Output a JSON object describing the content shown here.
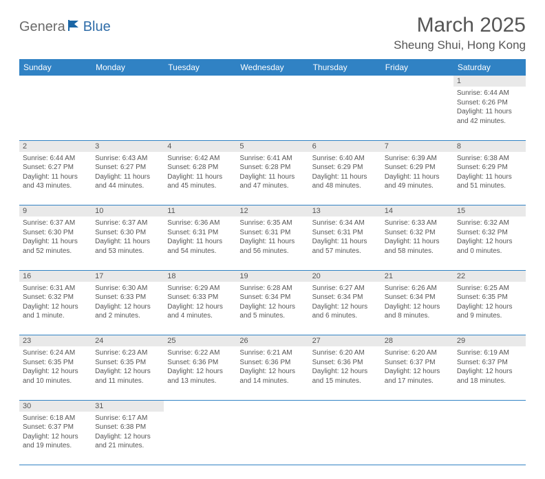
{
  "logo": {
    "part1": "Genera",
    "part2": "Blue"
  },
  "title": "March 2025",
  "location": "Sheung Shui, Hong Kong",
  "colors": {
    "header_bg": "#3082c4",
    "header_fg": "#ffffff",
    "daynum_bg": "#e9e9e9",
    "cell_border": "#3082c4",
    "text": "#555555",
    "logo_accent": "#2e6ca8"
  },
  "day_headers": [
    "Sunday",
    "Monday",
    "Tuesday",
    "Wednesday",
    "Thursday",
    "Friday",
    "Saturday"
  ],
  "weeks": [
    [
      null,
      null,
      null,
      null,
      null,
      null,
      {
        "n": "1",
        "sr": "Sunrise: 6:44 AM",
        "ss": "Sunset: 6:26 PM",
        "dl": "Daylight: 11 hours and 42 minutes."
      }
    ],
    [
      {
        "n": "2",
        "sr": "Sunrise: 6:44 AM",
        "ss": "Sunset: 6:27 PM",
        "dl": "Daylight: 11 hours and 43 minutes."
      },
      {
        "n": "3",
        "sr": "Sunrise: 6:43 AM",
        "ss": "Sunset: 6:27 PM",
        "dl": "Daylight: 11 hours and 44 minutes."
      },
      {
        "n": "4",
        "sr": "Sunrise: 6:42 AM",
        "ss": "Sunset: 6:28 PM",
        "dl": "Daylight: 11 hours and 45 minutes."
      },
      {
        "n": "5",
        "sr": "Sunrise: 6:41 AM",
        "ss": "Sunset: 6:28 PM",
        "dl": "Daylight: 11 hours and 47 minutes."
      },
      {
        "n": "6",
        "sr": "Sunrise: 6:40 AM",
        "ss": "Sunset: 6:29 PM",
        "dl": "Daylight: 11 hours and 48 minutes."
      },
      {
        "n": "7",
        "sr": "Sunrise: 6:39 AM",
        "ss": "Sunset: 6:29 PM",
        "dl": "Daylight: 11 hours and 49 minutes."
      },
      {
        "n": "8",
        "sr": "Sunrise: 6:38 AM",
        "ss": "Sunset: 6:29 PM",
        "dl": "Daylight: 11 hours and 51 minutes."
      }
    ],
    [
      {
        "n": "9",
        "sr": "Sunrise: 6:37 AM",
        "ss": "Sunset: 6:30 PM",
        "dl": "Daylight: 11 hours and 52 minutes."
      },
      {
        "n": "10",
        "sr": "Sunrise: 6:37 AM",
        "ss": "Sunset: 6:30 PM",
        "dl": "Daylight: 11 hours and 53 minutes."
      },
      {
        "n": "11",
        "sr": "Sunrise: 6:36 AM",
        "ss": "Sunset: 6:31 PM",
        "dl": "Daylight: 11 hours and 54 minutes."
      },
      {
        "n": "12",
        "sr": "Sunrise: 6:35 AM",
        "ss": "Sunset: 6:31 PM",
        "dl": "Daylight: 11 hours and 56 minutes."
      },
      {
        "n": "13",
        "sr": "Sunrise: 6:34 AM",
        "ss": "Sunset: 6:31 PM",
        "dl": "Daylight: 11 hours and 57 minutes."
      },
      {
        "n": "14",
        "sr": "Sunrise: 6:33 AM",
        "ss": "Sunset: 6:32 PM",
        "dl": "Daylight: 11 hours and 58 minutes."
      },
      {
        "n": "15",
        "sr": "Sunrise: 6:32 AM",
        "ss": "Sunset: 6:32 PM",
        "dl": "Daylight: 12 hours and 0 minutes."
      }
    ],
    [
      {
        "n": "16",
        "sr": "Sunrise: 6:31 AM",
        "ss": "Sunset: 6:32 PM",
        "dl": "Daylight: 12 hours and 1 minute."
      },
      {
        "n": "17",
        "sr": "Sunrise: 6:30 AM",
        "ss": "Sunset: 6:33 PM",
        "dl": "Daylight: 12 hours and 2 minutes."
      },
      {
        "n": "18",
        "sr": "Sunrise: 6:29 AM",
        "ss": "Sunset: 6:33 PM",
        "dl": "Daylight: 12 hours and 4 minutes."
      },
      {
        "n": "19",
        "sr": "Sunrise: 6:28 AM",
        "ss": "Sunset: 6:34 PM",
        "dl": "Daylight: 12 hours and 5 minutes."
      },
      {
        "n": "20",
        "sr": "Sunrise: 6:27 AM",
        "ss": "Sunset: 6:34 PM",
        "dl": "Daylight: 12 hours and 6 minutes."
      },
      {
        "n": "21",
        "sr": "Sunrise: 6:26 AM",
        "ss": "Sunset: 6:34 PM",
        "dl": "Daylight: 12 hours and 8 minutes."
      },
      {
        "n": "22",
        "sr": "Sunrise: 6:25 AM",
        "ss": "Sunset: 6:35 PM",
        "dl": "Daylight: 12 hours and 9 minutes."
      }
    ],
    [
      {
        "n": "23",
        "sr": "Sunrise: 6:24 AM",
        "ss": "Sunset: 6:35 PM",
        "dl": "Daylight: 12 hours and 10 minutes."
      },
      {
        "n": "24",
        "sr": "Sunrise: 6:23 AM",
        "ss": "Sunset: 6:35 PM",
        "dl": "Daylight: 12 hours and 11 minutes."
      },
      {
        "n": "25",
        "sr": "Sunrise: 6:22 AM",
        "ss": "Sunset: 6:36 PM",
        "dl": "Daylight: 12 hours and 13 minutes."
      },
      {
        "n": "26",
        "sr": "Sunrise: 6:21 AM",
        "ss": "Sunset: 6:36 PM",
        "dl": "Daylight: 12 hours and 14 minutes."
      },
      {
        "n": "27",
        "sr": "Sunrise: 6:20 AM",
        "ss": "Sunset: 6:36 PM",
        "dl": "Daylight: 12 hours and 15 minutes."
      },
      {
        "n": "28",
        "sr": "Sunrise: 6:20 AM",
        "ss": "Sunset: 6:37 PM",
        "dl": "Daylight: 12 hours and 17 minutes."
      },
      {
        "n": "29",
        "sr": "Sunrise: 6:19 AM",
        "ss": "Sunset: 6:37 PM",
        "dl": "Daylight: 12 hours and 18 minutes."
      }
    ],
    [
      {
        "n": "30",
        "sr": "Sunrise: 6:18 AM",
        "ss": "Sunset: 6:37 PM",
        "dl": "Daylight: 12 hours and 19 minutes."
      },
      {
        "n": "31",
        "sr": "Sunrise: 6:17 AM",
        "ss": "Sunset: 6:38 PM",
        "dl": "Daylight: 12 hours and 21 minutes."
      },
      null,
      null,
      null,
      null,
      null
    ]
  ]
}
